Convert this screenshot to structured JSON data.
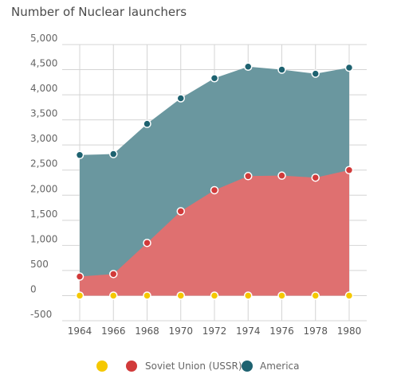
{
  "chart_data": {
    "type": "area",
    "title": "Number of Nuclear launchers",
    "x": [
      1964,
      1966,
      1968,
      1970,
      1972,
      1974,
      1976,
      1978,
      1980
    ],
    "y_ticks": [
      "5,000",
      "4,500",
      "4,000",
      "3,500",
      "3,000",
      "2,500",
      "2,000",
      "1,500",
      "1,000",
      "500",
      "0",
      "-500"
    ],
    "ylim": [
      -500,
      5000
    ],
    "grid": true,
    "stacked": true,
    "legend_position": "bottom",
    "series": [
      {
        "name": "",
        "color": "#f5c800",
        "values": [
          0,
          0,
          0,
          0,
          0,
          0,
          0,
          0,
          0
        ]
      },
      {
        "name": "Soviet Union (USSR)",
        "color": "#d13a3a",
        "fill": "#df7070",
        "values": [
          380,
          430,
          1050,
          1680,
          2100,
          2380,
          2390,
          2350,
          2500
        ]
      },
      {
        "name": "America",
        "color": "#1e6270",
        "fill": "#6a979f",
        "values": [
          2800,
          2820,
          3420,
          3930,
          4330,
          4560,
          4500,
          4420,
          4540
        ]
      }
    ]
  }
}
